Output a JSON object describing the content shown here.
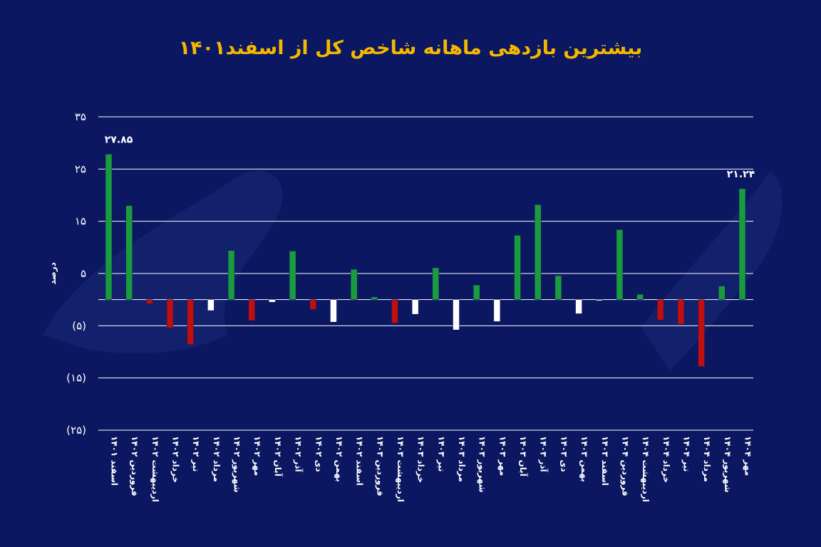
{
  "chart_data": {
    "type": "bar",
    "title": "بیشترین بازدهی ماهانه شاخص کل از اسفند۱۴۰۱",
    "ylabel": "درصد",
    "ylim": [
      -25,
      35
    ],
    "yticks": [
      35,
      25,
      15,
      5,
      -5,
      -15,
      -25
    ],
    "ytick_labels": [
      "۳۵",
      "۲۵",
      "۱۵",
      "۵",
      "(۵)",
      "(۱۵)",
      "(۲۵)"
    ],
    "grid": true,
    "legend": "none",
    "colors": {
      "positive": "#1a9c3e",
      "negative": "#c00f0f",
      "neutral": "#ffffff",
      "background": "#0b1760",
      "title": "#f5b800"
    },
    "categories": [
      "اسفند ۱۴۰۱",
      "فروردین ۱۴۰۲",
      "اردیبهشت ۱۴۰۲",
      "خرداد ۱۴۰۲",
      "تیر ۱۴۰۲",
      "مرداد ۱۴۰۲",
      "شهریور ۱۴۰۲",
      "مهر ۱۴۰۲",
      "آبان ۱۴۰۲",
      "آذر ۱۴۰۲",
      "دی ۱۴۰۲",
      "بهمن ۱۴۰۲",
      "اسفند ۱۴۰۲",
      "فروردین ۱۴۰۳",
      "اردیبهشت ۱۴۰۳",
      "خرداد ۱۴۰۳",
      "تیر ۱۴۰۳",
      "مرداد ۱۴۰۳",
      "شهریور ۱۴۰۳",
      "مهر ۱۴۰۳",
      "آبان ۱۴۰۳",
      "آذر ۱۴۰۳",
      "دی ۱۴۰۳",
      "بهمن ۱۴۰۳",
      "اسفند ۱۴۰۳",
      "فروردین ۱۴۰۴",
      "اردیبهشت ۱۴۰۴",
      "خرداد ۱۴۰۴",
      "تیر ۱۴۰۴",
      "مرداد ۱۴۰۴",
      "شهریور ۱۴۰۴",
      "مهر ۱۴۰۴"
    ],
    "values": [
      27.85,
      18.0,
      -0.8,
      -5.4,
      -8.6,
      -2.1,
      9.4,
      -4.0,
      -0.5,
      9.3,
      -1.9,
      -4.3,
      5.8,
      0.5,
      -4.5,
      -2.8,
      6.1,
      -5.8,
      2.8,
      -4.2,
      12.3,
      18.2,
      4.6,
      -2.7,
      -0.2,
      13.4,
      1.0,
      -3.9,
      -4.7,
      -12.8,
      2.6,
      21.24
    ],
    "colors_per_bar": [
      "g",
      "g",
      "r",
      "r",
      "r",
      "w",
      "g",
      "r",
      "w",
      "g",
      "r",
      "w",
      "g",
      "g",
      "r",
      "w",
      "g",
      "w",
      "g",
      "w",
      "g",
      "g",
      "g",
      "w",
      "w",
      "g",
      "g",
      "r",
      "r",
      "r",
      "g",
      "g"
    ],
    "data_labels": [
      {
        "index": 0,
        "text": "۲۷.۸۵"
      },
      {
        "index": 31,
        "text": "۲۱.۲۴"
      }
    ]
  }
}
